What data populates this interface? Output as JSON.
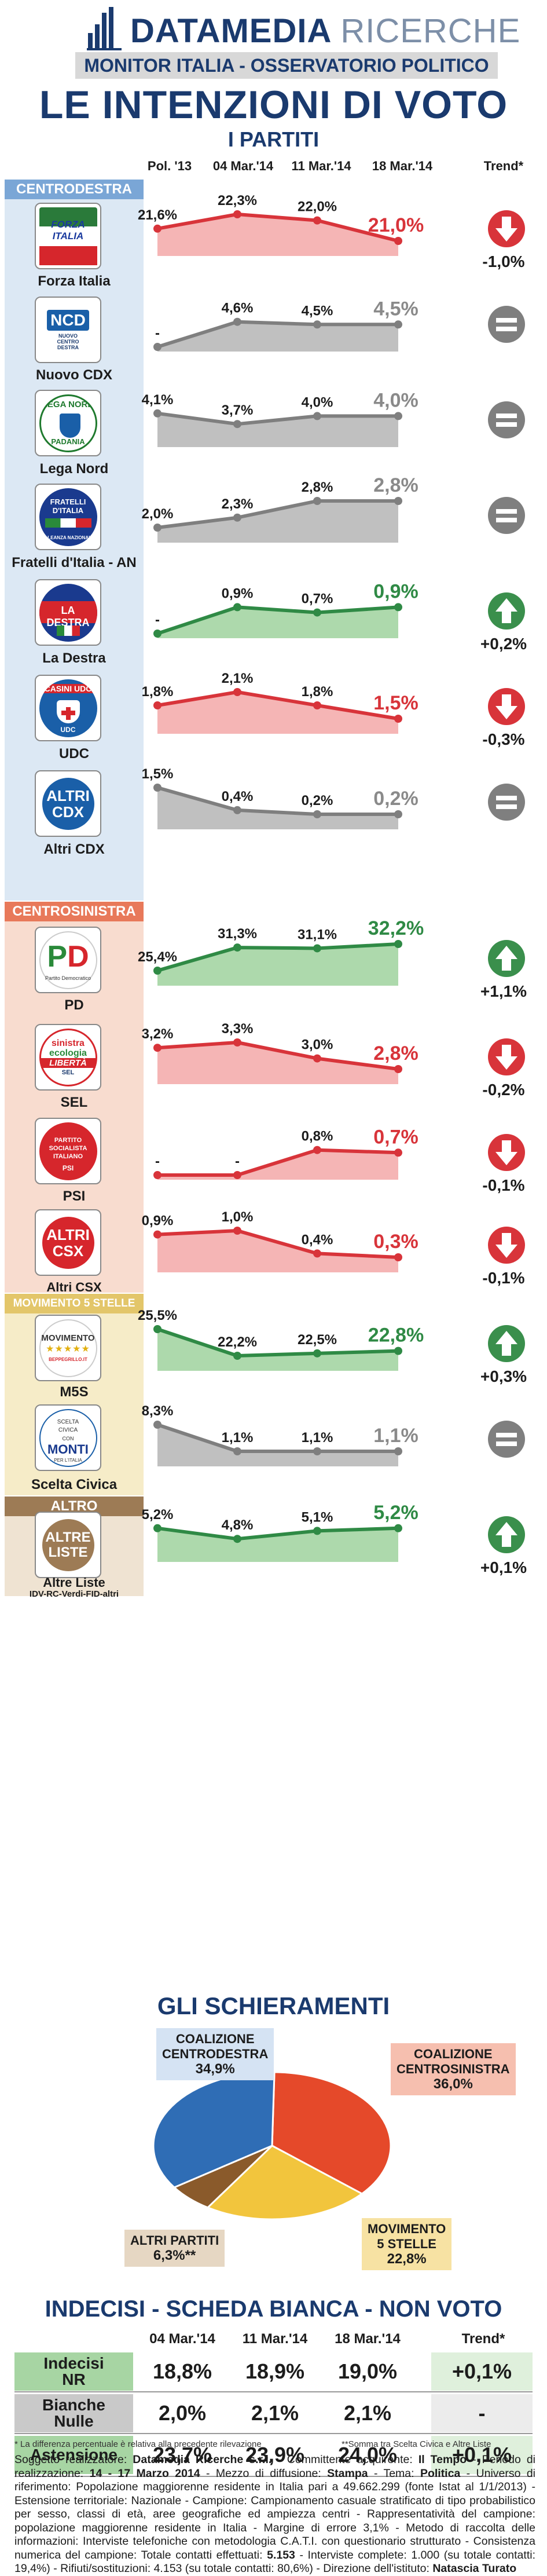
{
  "header": {
    "brand_main": "DATAMEDIA",
    "brand_sub": "RICERCHE",
    "monitor": "MONITOR ITALIA - OSSERVATORIO POLITICO",
    "title": "LE INTENZIONI DI VOTO",
    "subtitle": "I PARTITI",
    "columns": [
      "Pol. '13",
      "04 Mar.'14",
      "11 Mar.'14",
      "18 Mar.'14",
      "Trend*"
    ]
  },
  "colors": {
    "navy": "#1a3a6e",
    "centrodestra": "#7aa6d6",
    "centrodestra_band": "#dce8f4",
    "centrosinistra": "#e8795a",
    "centrosinistra_band": "#f8dccf",
    "m5s": "#e3c66a",
    "m5s_band": "#f6ecc8",
    "altro": "#9d7b55",
    "altro_band": "#efe3d2",
    "up": "#3a8f4c",
    "down": "#d8343a",
    "flat": "#7f7f7f",
    "area_gray": "#b5b5b5",
    "area_green": "#9fd29e",
    "area_red": "#f3a8a8"
  },
  "groups": [
    {
      "label": "CENTRODESTRA",
      "key": "centrodestra"
    },
    {
      "label": "CENTROSINISTRA",
      "key": "centrosinistra"
    },
    {
      "label": "MOVIMENTO 5 STELLE",
      "key": "m5s"
    },
    {
      "label": "ALTRO",
      "key": "altro"
    }
  ],
  "chart_data": {
    "type": "area",
    "categories": [
      "Pol. '13",
      "04 Mar.'14",
      "11 Mar.'14",
      "18 Mar.'14"
    ],
    "series": [
      {
        "name": "Forza Italia",
        "group": "centrodestra",
        "values": [
          21.6,
          22.3,
          22.0,
          21.0
        ],
        "labels": [
          "21,6%",
          "22,3%",
          "22,0%",
          "21,0%"
        ],
        "trend": "down",
        "trend_text": "-1,0%",
        "color": "red",
        "logo": "FORZA ITALIA"
      },
      {
        "name": "Nuovo CDX",
        "group": "centrodestra",
        "values": [
          null,
          4.6,
          4.5,
          4.5
        ],
        "labels": [
          "-",
          "4,6%",
          "4,5%",
          "4,5%"
        ],
        "trend": "flat",
        "trend_text": "",
        "color": "gray",
        "logo": "NCD"
      },
      {
        "name": "Lega Nord",
        "group": "centrodestra",
        "values": [
          4.1,
          3.7,
          4.0,
          4.0
        ],
        "labels": [
          "4,1%",
          "3,7%",
          "4,0%",
          "4,0%"
        ],
        "trend": "flat",
        "trend_text": "",
        "color": "gray",
        "logo": "LEGA NORD"
      },
      {
        "name": "Fratelli d'Italia - AN",
        "group": "centrodestra",
        "values": [
          2.0,
          2.3,
          2.8,
          2.8
        ],
        "labels": [
          "2,0%",
          "2,3%",
          "2,8%",
          "2,8%"
        ],
        "trend": "flat",
        "trend_text": "",
        "color": "gray",
        "logo": "FRATELLI D'ITALIA"
      },
      {
        "name": "La Destra",
        "group": "centrodestra",
        "values": [
          null,
          0.9,
          0.7,
          0.9
        ],
        "labels": [
          "-",
          "0,9%",
          "0,7%",
          "0,9%"
        ],
        "trend": "up",
        "trend_text": "+0,2%",
        "color": "green",
        "logo": "LA DESTRA"
      },
      {
        "name": "UDC",
        "group": "centrodestra",
        "values": [
          1.8,
          2.1,
          1.8,
          1.5
        ],
        "labels": [
          "1,8%",
          "2,1%",
          "1,8%",
          "1,5%"
        ],
        "trend": "down",
        "trend_text": "-0,3%",
        "color": "red",
        "logo": "CASINI UDC"
      },
      {
        "name": "Altri CDX",
        "group": "centrodestra",
        "values": [
          1.5,
          0.4,
          0.2,
          0.2
        ],
        "labels": [
          "1,5%",
          "0,4%",
          "0,2%",
          "0,2%"
        ],
        "trend": "flat",
        "trend_text": "",
        "color": "gray",
        "logo": "ALTRI CDX"
      },
      {
        "name": "PD",
        "group": "centrosinistra",
        "values": [
          25.4,
          31.3,
          31.1,
          32.2
        ],
        "labels": [
          "25,4%",
          "31,3%",
          "31,1%",
          "32,2%"
        ],
        "trend": "up",
        "trend_text": "+1,1%",
        "color": "green",
        "logo": "PD"
      },
      {
        "name": "SEL",
        "group": "centrosinistra",
        "values": [
          3.2,
          3.3,
          3.0,
          2.8
        ],
        "labels": [
          "3,2%",
          "3,3%",
          "3,0%",
          "2,8%"
        ],
        "trend": "down",
        "trend_text": "-0,2%",
        "color": "red",
        "logo": "SEL"
      },
      {
        "name": "PSI",
        "group": "centrosinistra",
        "values": [
          null,
          null,
          0.8,
          0.7
        ],
        "labels": [
          "-",
          "-",
          "0,8%",
          "0,7%"
        ],
        "trend": "down",
        "trend_text": "-0,1%",
        "color": "red",
        "logo": "PSI"
      },
      {
        "name": "Altri CSX",
        "group": "centrosinistra",
        "values": [
          0.9,
          1.0,
          0.4,
          0.3
        ],
        "labels": [
          "0,9%",
          "1,0%",
          "0,4%",
          "0,3%"
        ],
        "trend": "down",
        "trend_text": "-0,1%",
        "color": "red",
        "logo": "ALTRI CSX"
      },
      {
        "name": "M5S",
        "group": "m5s",
        "values": [
          25.5,
          22.2,
          22.5,
          22.8
        ],
        "labels": [
          "25,5%",
          "22,2%",
          "22,5%",
          "22,8%"
        ],
        "trend": "up",
        "trend_text": "+0,3%",
        "color": "green",
        "logo": "MOVIMENTO"
      },
      {
        "name": "Scelta Civica",
        "group": "m5s",
        "values": [
          8.3,
          1.1,
          1.1,
          1.1
        ],
        "labels": [
          "8,3%",
          "1,1%",
          "1,1%",
          "1,1%"
        ],
        "trend": "flat",
        "trend_text": "",
        "color": "gray",
        "logo": "MONTI"
      },
      {
        "name": "Altre Liste",
        "group": "altro",
        "sub": "IDV-RC-Verdi-FID-altri",
        "values": [
          5.2,
          4.8,
          5.1,
          5.2
        ],
        "labels": [
          "5,2%",
          "4,8%",
          "5,1%",
          "5,2%"
        ],
        "trend": "up",
        "trend_text": "+0,1%",
        "color": "green",
        "logo": "ALTRE LISTE"
      }
    ]
  },
  "logos": {
    "ncd_small": "NUOVO CENTRO DESTRA",
    "lega_sub": "PADANIA",
    "fdi_sub": "ALLEANZA NAZIONALE",
    "udc": "UDC",
    "pd_sub": "Partito Democratico",
    "sel_1": "sinistra",
    "sel_2": "ecologia",
    "sel_3": "LIBERTÀ",
    "sel_4": "SEL",
    "psi_1": "PARTITO",
    "psi_2": "SOCIALISTA",
    "psi_3": "ITALIANO",
    "psi_4": "PSI",
    "m5s_sub": "BEPPEGRILLO.IT",
    "sc_1": "SCELTA",
    "sc_2": "CIVICA",
    "sc_3": "CON",
    "sc_4": "PER L'ITALIA"
  },
  "schieramenti": {
    "title": "GLI SCHIERAMENTI",
    "slices": [
      {
        "name": "COALIZIONE CENTRODESTRA",
        "label_1": "COALIZIONE",
        "label_2": "CENTRODESTRA",
        "value": 34.9,
        "value_label": "34,9%",
        "color": "#2f6db5"
      },
      {
        "name": "COALIZIONE CENTROSINISTRA",
        "label_1": "COALIZIONE",
        "label_2": "CENTROSINISTRA",
        "value": 36.0,
        "value_label": "36,0%",
        "color": "#e5492a"
      },
      {
        "name": "MOVIMENTO 5 STELLE",
        "label_1": "MOVIMENTO",
        "label_2": "5 STELLE",
        "value": 22.8,
        "value_label": "22,8%",
        "color": "#f2c53d"
      },
      {
        "name": "ALTRI PARTITI",
        "label_1": "ALTRI",
        "label_2": "PARTITI",
        "value": 6.3,
        "value_label": "6,3%**",
        "color": "#8a5a2b"
      }
    ]
  },
  "indecisi": {
    "title": "INDECISI - SCHEDA BIANCA - NON VOTO",
    "columns": [
      "04 Mar.'14",
      "11 Mar.'14",
      "18 Mar.'14",
      "Trend*"
    ],
    "rows": [
      {
        "label_1": "Indecisi",
        "label_2": "NR",
        "values": [
          "18,8%",
          "18,9%",
          "19,0%"
        ],
        "trend": "+0,1%",
        "color": "#a7d5a3"
      },
      {
        "label_1": "Bianche",
        "label_2": "Nulle",
        "values": [
          "2,0%",
          "2,1%",
          "2,1%"
        ],
        "trend": "-",
        "color": "#c9c9c9"
      },
      {
        "label_1": "Astensione",
        "label_2": "",
        "values": [
          "23,7%",
          "23,9%",
          "24,0%"
        ],
        "trend": "+0,1%",
        "color": "#a7d5a3"
      }
    ],
    "footnote_left": "* La differenza percentuale è relativa alla precedente rilevazione",
    "footnote_right": "**Somma tra Scelta Civica e Altre Liste"
  },
  "footer": {
    "l1": "Soggetto realizzatore: ",
    "b1": "Datamedia Ricerche s.r.l.",
    "l2": " - Committente acquirente: ",
    "b2": "Il Tempo",
    "l3": " - Periodo di realizzazione: ",
    "b3": "14 - 17 Marzo 2014",
    "l4": " - Mezzo di diffusione: ",
    "b4": "Stampa",
    "l5": " - Tema: ",
    "b5": "Politica",
    "l6": " - Universo di riferimento: Popolazione maggiorenne residente in Italia pari a 49.662.299 (fonte Istat al 1/1/2013) - Estensione territoriale: Nazionale - Campione: Campionamento casuale stratificato di tipo probabilistico per sesso, classi di età, aree geografiche ed ampiezza centri - Rappresentatività del campione: popolazione maggiorenne residente in Italia - Margine di errore 3,1% - Metodo di raccolta delle informazioni: Interviste telefoniche con metodologia C.A.T.I. con questionario strutturato - Consistenza numerica del campione: Totale contatti effettuati: ",
    "b6": "5.153",
    "l7": " - Interviste complete: 1.000 (su totale contatti: 19,4%) - Rifiuti/sostituzioni: 4.153 (su totale contatti: 80,6%) - Direzione dell'istituto: ",
    "b7": "Natascia Turato"
  }
}
